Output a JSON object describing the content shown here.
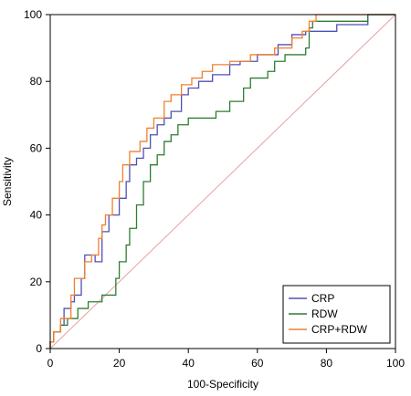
{
  "chart_data": {
    "type": "line",
    "xlabel": "100-Specificity",
    "ylabel": "Sensitivity",
    "xlim": [
      0,
      100
    ],
    "ylim": [
      0,
      100
    ],
    "xticks": [
      0,
      20,
      40,
      60,
      80,
      100
    ],
    "yticks": [
      0,
      20,
      40,
      60,
      80,
      100
    ],
    "grid": false,
    "legend_position": "bottom-right",
    "reference_line": {
      "from": [
        0,
        0
      ],
      "to": [
        100,
        100
      ],
      "color": "#e8a0a0"
    },
    "series": [
      {
        "name": "CRP",
        "color": "#5050b4",
        "points": [
          [
            0,
            0
          ],
          [
            0,
            2
          ],
          [
            1,
            2
          ],
          [
            1,
            5
          ],
          [
            3,
            5
          ],
          [
            3,
            7
          ],
          [
            4,
            7
          ],
          [
            4,
            12
          ],
          [
            6,
            12
          ],
          [
            6,
            14
          ],
          [
            7,
            14
          ],
          [
            7,
            16
          ],
          [
            9,
            16
          ],
          [
            9,
            21
          ],
          [
            10,
            21
          ],
          [
            10,
            28
          ],
          [
            13,
            28
          ],
          [
            13,
            26
          ],
          [
            15,
            26
          ],
          [
            15,
            35
          ],
          [
            17,
            35
          ],
          [
            17,
            40
          ],
          [
            20,
            40
          ],
          [
            20,
            45
          ],
          [
            22,
            45
          ],
          [
            22,
            50
          ],
          [
            23,
            50
          ],
          [
            23,
            55
          ],
          [
            25,
            55
          ],
          [
            25,
            57
          ],
          [
            27,
            57
          ],
          [
            27,
            60
          ],
          [
            29,
            60
          ],
          [
            29,
            64
          ],
          [
            31,
            64
          ],
          [
            31,
            67
          ],
          [
            33,
            67
          ],
          [
            33,
            69
          ],
          [
            35,
            69
          ],
          [
            35,
            71
          ],
          [
            38,
            71
          ],
          [
            38,
            76
          ],
          [
            40,
            76
          ],
          [
            40,
            78
          ],
          [
            43,
            78
          ],
          [
            43,
            80
          ],
          [
            47,
            80
          ],
          [
            47,
            82
          ],
          [
            52,
            82
          ],
          [
            52,
            85
          ],
          [
            55,
            85
          ],
          [
            55,
            86
          ],
          [
            60,
            86
          ],
          [
            60,
            88
          ],
          [
            66,
            88
          ],
          [
            66,
            91
          ],
          [
            70,
            91
          ],
          [
            70,
            94
          ],
          [
            74,
            94
          ],
          [
            74,
            95
          ],
          [
            83,
            95
          ],
          [
            83,
            97
          ],
          [
            92,
            97
          ],
          [
            92,
            100
          ],
          [
            100,
            100
          ]
        ]
      },
      {
        "name": "RDW",
        "color": "#2e7d32",
        "points": [
          [
            0,
            0
          ],
          [
            0,
            2
          ],
          [
            1,
            2
          ],
          [
            1,
            5
          ],
          [
            3,
            5
          ],
          [
            3,
            7
          ],
          [
            5,
            7
          ],
          [
            5,
            9
          ],
          [
            8,
            9
          ],
          [
            8,
            12
          ],
          [
            11,
            12
          ],
          [
            11,
            14
          ],
          [
            15,
            14
          ],
          [
            15,
            16
          ],
          [
            19,
            16
          ],
          [
            19,
            21
          ],
          [
            20,
            21
          ],
          [
            20,
            26
          ],
          [
            22,
            26
          ],
          [
            22,
            31
          ],
          [
            23,
            31
          ],
          [
            23,
            36
          ],
          [
            25,
            36
          ],
          [
            25,
            43
          ],
          [
            27,
            43
          ],
          [
            27,
            50
          ],
          [
            29,
            50
          ],
          [
            29,
            55
          ],
          [
            31,
            55
          ],
          [
            31,
            58
          ],
          [
            33,
            58
          ],
          [
            33,
            62
          ],
          [
            35,
            62
          ],
          [
            35,
            64
          ],
          [
            37,
            64
          ],
          [
            37,
            67
          ],
          [
            40,
            67
          ],
          [
            40,
            69
          ],
          [
            48,
            69
          ],
          [
            48,
            71
          ],
          [
            52,
            71
          ],
          [
            52,
            74
          ],
          [
            56,
            74
          ],
          [
            56,
            78
          ],
          [
            58,
            78
          ],
          [
            58,
            81
          ],
          [
            63,
            81
          ],
          [
            63,
            83
          ],
          [
            65,
            83
          ],
          [
            65,
            86
          ],
          [
            68,
            86
          ],
          [
            68,
            88
          ],
          [
            74,
            88
          ],
          [
            74,
            90
          ],
          [
            75,
            90
          ],
          [
            75,
            96
          ],
          [
            76,
            96
          ],
          [
            76,
            98
          ],
          [
            92,
            98
          ],
          [
            92,
            100
          ],
          [
            100,
            100
          ]
        ]
      },
      {
        "name": "CRP+RDW",
        "color": "#f08030",
        "points": [
          [
            0,
            0
          ],
          [
            0,
            2
          ],
          [
            1,
            2
          ],
          [
            1,
            5
          ],
          [
            3,
            5
          ],
          [
            3,
            9
          ],
          [
            6,
            9
          ],
          [
            6,
            16
          ],
          [
            7,
            16
          ],
          [
            7,
            21
          ],
          [
            10,
            21
          ],
          [
            10,
            26
          ],
          [
            12,
            26
          ],
          [
            12,
            28
          ],
          [
            14,
            28
          ],
          [
            14,
            33
          ],
          [
            15,
            33
          ],
          [
            15,
            37
          ],
          [
            16,
            37
          ],
          [
            16,
            40
          ],
          [
            18,
            40
          ],
          [
            18,
            45
          ],
          [
            20,
            45
          ],
          [
            20,
            50
          ],
          [
            21,
            50
          ],
          [
            21,
            55
          ],
          [
            23,
            55
          ],
          [
            23,
            59
          ],
          [
            26,
            59
          ],
          [
            26,
            62
          ],
          [
            28,
            62
          ],
          [
            28,
            66
          ],
          [
            30,
            66
          ],
          [
            30,
            69
          ],
          [
            33,
            69
          ],
          [
            33,
            74
          ],
          [
            35,
            74
          ],
          [
            35,
            76
          ],
          [
            38,
            76
          ],
          [
            38,
            79
          ],
          [
            41,
            79
          ],
          [
            41,
            81
          ],
          [
            44,
            81
          ],
          [
            44,
            83
          ],
          [
            47,
            83
          ],
          [
            47,
            85
          ],
          [
            52,
            85
          ],
          [
            52,
            86
          ],
          [
            58,
            86
          ],
          [
            58,
            88
          ],
          [
            65,
            88
          ],
          [
            65,
            90
          ],
          [
            70,
            90
          ],
          [
            70,
            93
          ],
          [
            73,
            93
          ],
          [
            73,
            95
          ],
          [
            75,
            95
          ],
          [
            75,
            98
          ],
          [
            77,
            98
          ],
          [
            77,
            100
          ],
          [
            100,
            100
          ]
        ]
      }
    ]
  }
}
